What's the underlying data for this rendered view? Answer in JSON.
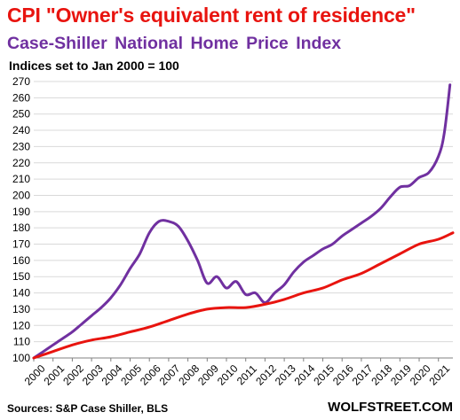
{
  "title": "CPI \"Owner's equivalent rent of residence\"",
  "subtitle": "Case-Shiller National Home Price Index",
  "note": "Indices set to Jan 2000 = 100",
  "source": "Sources: S&P Case Shiller, BLS",
  "brand": "WOLFSTREET.COM",
  "chart_data": {
    "type": "line",
    "ylim": [
      100,
      270
    ],
    "yticks": [
      100,
      110,
      120,
      130,
      140,
      150,
      160,
      170,
      180,
      190,
      200,
      210,
      220,
      230,
      240,
      250,
      260,
      270
    ],
    "xlim": [
      2000,
      2021.75
    ],
    "xticks": [
      "2000",
      "2001",
      "2002",
      "2003",
      "2004",
      "2005",
      "2006",
      "2007",
      "2008",
      "2009",
      "2010",
      "2011",
      "2012",
      "2013",
      "2014",
      "2015",
      "2016",
      "2017",
      "2018",
      "2019",
      "2020",
      "2021"
    ],
    "grid": true,
    "series": [
      {
        "color": "#7030a0",
        "x": [
          2000,
          2000.5,
          2001,
          2001.5,
          2002,
          2002.5,
          2003,
          2003.5,
          2004,
          2004.5,
          2005,
          2005.5,
          2006,
          2006.5,
          2007,
          2007.5,
          2008,
          2008.5,
          2009,
          2009.5,
          2010,
          2010.5,
          2011,
          2011.5,
          2012,
          2012.5,
          2013,
          2013.5,
          2014,
          2014.5,
          2015,
          2015.5,
          2016,
          2016.5,
          2017,
          2017.5,
          2018,
          2018.5,
          2019,
          2019.5,
          2020,
          2020.5,
          2021,
          2021.3,
          2021.6
        ],
        "y": [
          100,
          104,
          108,
          112,
          116,
          121,
          126,
          131,
          137,
          145,
          155,
          164,
          177,
          184,
          184,
          181,
          172,
          160,
          146,
          150,
          143,
          147,
          139,
          140,
          134,
          140,
          145,
          153,
          159,
          163,
          167,
          170,
          175,
          179,
          183,
          187,
          192,
          199,
          205,
          206,
          211,
          214,
          224,
          238,
          268
        ]
      },
      {
        "color": "#e8140f",
        "x": [
          2000,
          2001,
          2002,
          2003,
          2004,
          2005,
          2006,
          2007,
          2008,
          2009,
          2010,
          2011,
          2012,
          2013,
          2014,
          2015,
          2016,
          2017,
          2018,
          2019,
          2020,
          2021,
          2021.75
        ],
        "y": [
          100,
          104,
          108,
          111,
          113,
          116,
          119,
          123,
          127,
          130,
          131,
          131,
          133,
          136,
          140,
          143,
          148,
          152,
          158,
          164,
          170,
          173,
          177
        ]
      }
    ]
  }
}
